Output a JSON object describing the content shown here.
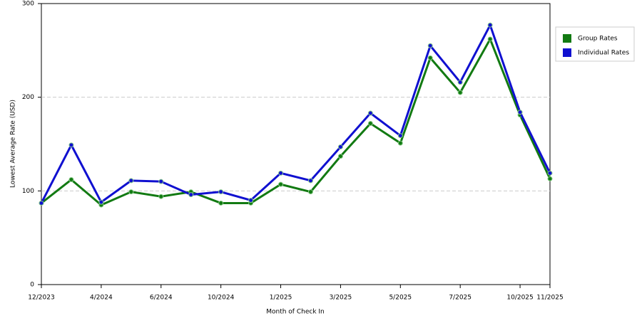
{
  "chart_data": {
    "type": "line",
    "x_label": "Month of Check In",
    "y_label": "Lowest Average Rate (USD)",
    "categories": [
      "12/2023",
      null,
      "4/2024",
      null,
      "6/2024",
      null,
      "10/2024",
      null,
      "1/2025",
      null,
      "3/2025",
      null,
      "5/2025",
      null,
      "7/2025",
      null,
      "10/2025",
      "11/2025"
    ],
    "series": [
      {
        "name": "Group Rates",
        "color": "#127a12",
        "values": [
          87,
          112,
          85,
          99,
          94,
          99,
          87,
          87,
          107,
          99,
          137,
          172,
          151,
          242,
          205,
          262,
          181,
          113
        ]
      },
      {
        "name": "Individual Rates",
        "color": "#1010d0",
        "values": [
          87,
          149,
          88,
          111,
          110,
          96,
          99,
          90,
          119,
          111,
          147,
          183,
          159,
          255,
          216,
          277,
          184,
          119
        ]
      }
    ],
    "ylim": [
      0,
      300
    ],
    "yticks": [
      0,
      100,
      200,
      300
    ],
    "grid": true,
    "legend": "right"
  }
}
